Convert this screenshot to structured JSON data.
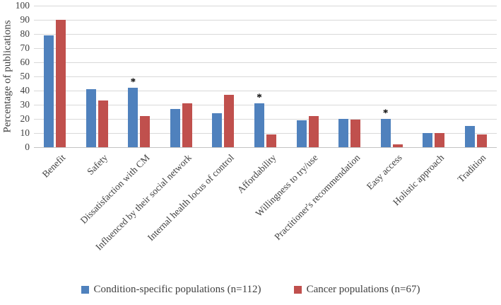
{
  "figure": {
    "background": "#ffffff",
    "gridline_color": "#d9d9d9",
    "axis_text_color": "#3f3f3f"
  },
  "chart_data": {
    "type": "bar",
    "title": "",
    "xlabel": "",
    "ylabel": "Percentage of publications",
    "ylim": [
      0,
      100
    ],
    "ytick_step": 10,
    "yticks": [
      0,
      10,
      20,
      30,
      40,
      50,
      60,
      70,
      80,
      90,
      100
    ],
    "grid": true,
    "legend_position": "bottom",
    "categories": [
      "Benefit",
      "Safety",
      "Dissatisfaction with CM",
      "Influenced by their social network",
      "Internal health locus of control",
      "Affordability",
      "Willingness to try/use",
      "Practitioner's recommendation",
      "Easy access",
      "Holistic approach",
      "Tradition"
    ],
    "series": [
      {
        "name": "Condition-specific populations (n=112)",
        "color": "#4f81bd",
        "values": [
          79,
          41,
          42,
          27,
          24,
          31,
          19,
          20,
          20,
          10,
          15
        ]
      },
      {
        "name": "Cancer populations (n=67)",
        "color": "#c0504d",
        "values": [
          90,
          33,
          22,
          31,
          37,
          9,
          22,
          19.5,
          2,
          10,
          9
        ]
      }
    ],
    "significance_marker": "*",
    "significant_categories": [
      "Dissatisfaction with CM",
      "Affordability",
      "Easy access"
    ],
    "significant_category_indices": [
      2,
      5,
      8
    ]
  }
}
